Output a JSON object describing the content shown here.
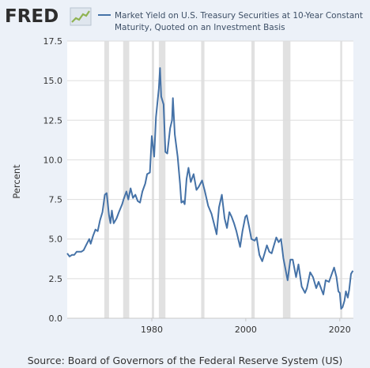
{
  "header": {
    "logo_text": "FRED",
    "logo_icon": "line-chart-icon"
  },
  "colors": {
    "background": "#ecf1f8",
    "plot_background": "#ffffff",
    "series_line": "#4572a7",
    "recession_band": "#e1e1e1",
    "grid": "#dddddd",
    "logo_text": "#2d2d2d",
    "logo_accent": "#8fb351"
  },
  "chart_data": {
    "type": "line",
    "title": "",
    "xlabel": "",
    "ylabel": "Percent",
    "legend_position": "top",
    "ylim": [
      0,
      17.5
    ],
    "xlim": [
      1962.0,
      2022.9
    ],
    "grid": true,
    "y_ticks": [
      0.0,
      2.5,
      5.0,
      7.5,
      10.0,
      12.5,
      15.0,
      17.5
    ],
    "y_tick_labels": [
      "0.0",
      "2.5",
      "5.0",
      "7.5",
      "10.0",
      "12.5",
      "15.0",
      "17.5"
    ],
    "x_ticks": [
      1980,
      2000,
      2020
    ],
    "x_tick_labels": [
      "1980",
      "2000",
      "2020"
    ],
    "recessions": [
      [
        1969.9,
        1970.9
      ],
      [
        1973.9,
        1975.2
      ],
      [
        1980.0,
        1980.5
      ],
      [
        1981.5,
        1982.9
      ],
      [
        1990.5,
        1991.2
      ],
      [
        2001.2,
        2001.9
      ],
      [
        2007.9,
        2009.5
      ],
      [
        2020.1,
        2020.3
      ]
    ],
    "series": [
      {
        "name": "Market Yield on U.S. Treasury Securities at 10-Year Constant Maturity, Quoted on an Investment Basis",
        "x": [
          1962.0,
          1962.5,
          1963.0,
          1963.5,
          1964.0,
          1964.5,
          1965.0,
          1965.5,
          1966.0,
          1966.7,
          1967.0,
          1967.5,
          1968.0,
          1968.5,
          1969.0,
          1969.5,
          1970.0,
          1970.4,
          1970.9,
          1971.2,
          1971.5,
          1971.9,
          1972.5,
          1973.0,
          1973.7,
          1974.0,
          1974.6,
          1975.0,
          1975.5,
          1976.0,
          1976.5,
          1977.0,
          1977.5,
          1978.0,
          1978.6,
          1979.0,
          1979.6,
          1980.0,
          1980.2,
          1980.5,
          1980.9,
          1981.2,
          1981.5,
          1981.75,
          1982.0,
          1982.5,
          1982.9,
          1983.3,
          1983.9,
          1984.3,
          1984.5,
          1984.9,
          1985.5,
          1986.0,
          1986.3,
          1986.7,
          1987.0,
          1987.4,
          1987.8,
          1988.3,
          1988.9,
          1989.5,
          1990.0,
          1990.7,
          1991.3,
          1992.0,
          1992.7,
          1993.3,
          1993.8,
          1994.3,
          1994.9,
          1995.5,
          1996.0,
          1996.5,
          1997.0,
          1997.5,
          1998.0,
          1998.8,
          1999.3,
          1999.9,
          2000.2,
          2000.7,
          2001.2,
          2001.9,
          2002.3,
          2002.9,
          2003.5,
          2004.0,
          2004.5,
          2005.0,
          2005.5,
          2006.0,
          2006.5,
          2007.0,
          2007.5,
          2008.0,
          2008.9,
          2009.5,
          2010.0,
          2010.7,
          2011.2,
          2011.9,
          2012.6,
          2013.0,
          2013.7,
          2014.3,
          2015.0,
          2015.5,
          2016.5,
          2017.0,
          2017.7,
          2018.3,
          2018.8,
          2019.3,
          2019.7,
          2020.0,
          2020.3,
          2020.6,
          2021.0,
          2021.3,
          2021.7,
          2022.0,
          2022.4,
          2022.8
        ],
        "values": [
          4.1,
          3.9,
          4.0,
          4.0,
          4.2,
          4.2,
          4.2,
          4.3,
          4.6,
          5.0,
          4.7,
          5.2,
          5.6,
          5.5,
          6.2,
          6.7,
          7.8,
          7.9,
          6.5,
          6.0,
          6.8,
          6.0,
          6.3,
          6.7,
          7.2,
          7.5,
          8.0,
          7.5,
          8.2,
          7.6,
          7.8,
          7.4,
          7.3,
          8.0,
          8.5,
          9.1,
          9.2,
          11.5,
          11.0,
          10.2,
          12.7,
          13.6,
          14.5,
          15.8,
          14.0,
          13.5,
          10.5,
          10.4,
          12.0,
          12.5,
          13.9,
          11.6,
          10.2,
          8.5,
          7.3,
          7.4,
          7.2,
          8.8,
          9.5,
          8.6,
          9.1,
          8.1,
          8.3,
          8.7,
          8.0,
          7.1,
          6.6,
          5.9,
          5.3,
          7.0,
          7.8,
          6.3,
          5.7,
          6.7,
          6.4,
          6.0,
          5.5,
          4.5,
          5.5,
          6.4,
          6.5,
          5.8,
          5.0,
          4.9,
          5.1,
          4.0,
          3.6,
          4.1,
          4.6,
          4.2,
          4.1,
          4.6,
          5.1,
          4.8,
          5.0,
          3.8,
          2.4,
          3.7,
          3.7,
          2.6,
          3.4,
          2.0,
          1.6,
          1.9,
          2.9,
          2.6,
          1.9,
          2.3,
          1.5,
          2.4,
          2.3,
          2.8,
          3.2,
          2.6,
          1.7,
          1.6,
          0.6,
          0.7,
          1.1,
          1.7,
          1.3,
          1.8,
          2.8,
          3.0
        ]
      }
    ]
  },
  "source": "Source: Board of Governors of the Federal Reserve System (US)"
}
